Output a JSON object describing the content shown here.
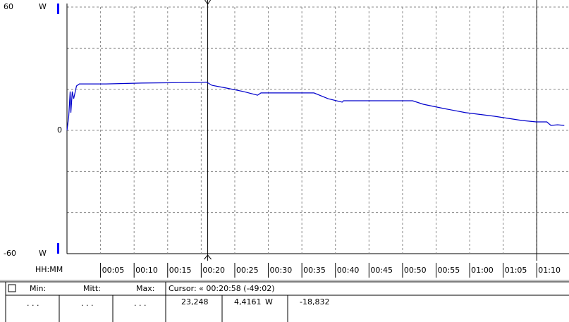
{
  "chart_data": {
    "type": "line",
    "x": [
      0,
      0.26,
      0.47,
      0.58,
      0.79,
      1.0,
      1.42,
      1.84,
      5.8,
      11.1,
      20,
      20.8,
      21.6,
      23.7,
      26.3,
      28.4,
      28.9,
      32.1,
      36.8,
      38.9,
      41.0,
      41.2,
      46.8,
      51.5,
      53.1,
      56.2,
      59.4,
      63.6,
      67.8,
      69.9,
      71.5,
      72.1,
      73.1,
      74.1
    ],
    "series": [
      {
        "color": "#0000cc",
        "values": [
          0,
          6.9,
          18.9,
          8.6,
          18.9,
          15.4,
          21.6,
          22.6,
          22.6,
          23.0,
          23.3,
          23.5,
          21.9,
          20.6,
          18.9,
          17.1,
          18.2,
          18.2,
          18.2,
          15.4,
          13.7,
          14.4,
          14.4,
          14.4,
          12.7,
          10.6,
          8.6,
          6.9,
          4.8,
          4.1,
          4.1,
          2.4,
          2.7,
          2.4
        ]
      }
    ],
    "ylim": [
      -60,
      60
    ],
    "yticks": [
      -60,
      0,
      60
    ],
    "y_minor_grid": [
      -40,
      -20,
      20,
      40
    ],
    "y_unit": "W",
    "xlim": [
      0,
      74.8
    ],
    "xlabel": "HH:MM",
    "xticks": [
      {
        "value": 5,
        "label": "00:05"
      },
      {
        "value": 10,
        "label": "00:10"
      },
      {
        "value": 15,
        "label": "00:15"
      },
      {
        "value": 20,
        "label": "00:20"
      },
      {
        "value": 25,
        "label": "00:25"
      },
      {
        "value": 30,
        "label": "00:30"
      },
      {
        "value": 35,
        "label": "00:35"
      },
      {
        "value": 40,
        "label": "00:40"
      },
      {
        "value": 45,
        "label": "00:45"
      },
      {
        "value": 50,
        "label": "00:50"
      },
      {
        "value": 55,
        "label": "00:55"
      },
      {
        "value": 60,
        "label": "01:00"
      },
      {
        "value": 65,
        "label": "01:05"
      },
      {
        "value": 70,
        "label": "01:10"
      }
    ],
    "cursors": [
      20.967,
      70
    ],
    "grid": true
  },
  "panel": {
    "headers": [
      "Min:",
      "Mitt:",
      "Max:"
    ],
    "cursor": "Cursor: « 00:20:58 (-49:02)",
    "stats": [
      ". . .",
      ". . .",
      ". . ."
    ],
    "readings": [
      "23,248",
      "4,4161",
      "W",
      "-18,832"
    ]
  }
}
